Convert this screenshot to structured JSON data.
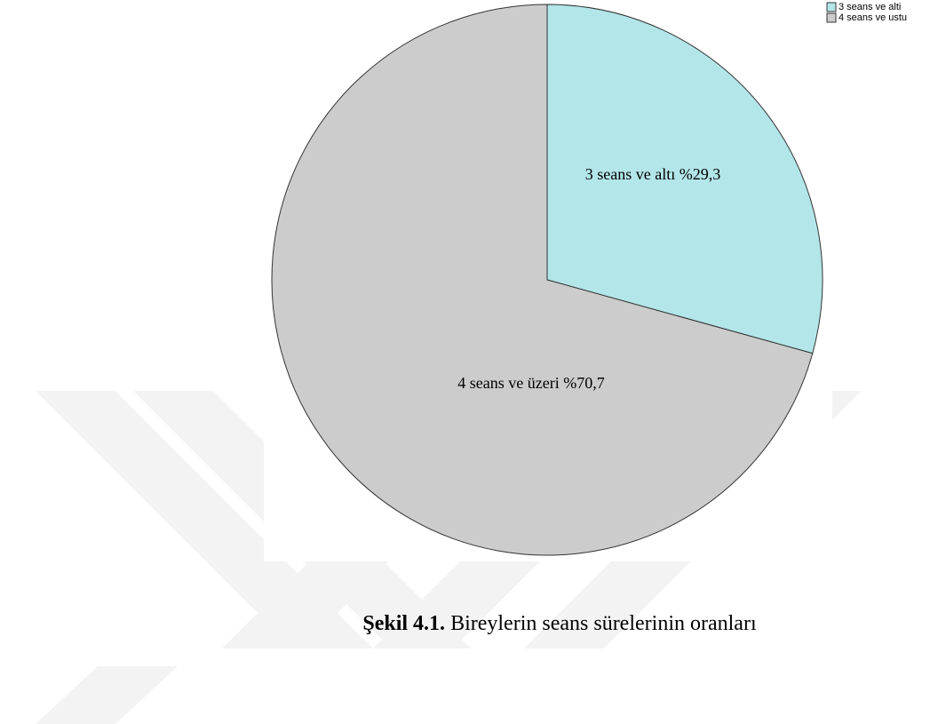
{
  "chart_data": {
    "type": "pie",
    "categories": [
      "3 seans ve alti",
      "4 seans ve ustu"
    ],
    "values": [
      29.3,
      70.7
    ],
    "value_labels": [
      "3 seans ve altı %29,3",
      "4 seans ve üzeri %70,7"
    ],
    "colors": [
      "#b3e6e9",
      "#cccccc"
    ],
    "legend": "upper right",
    "caption_label": "Şekil 4.1.",
    "caption": "Bireylerin seans sürelerinin oranları"
  }
}
